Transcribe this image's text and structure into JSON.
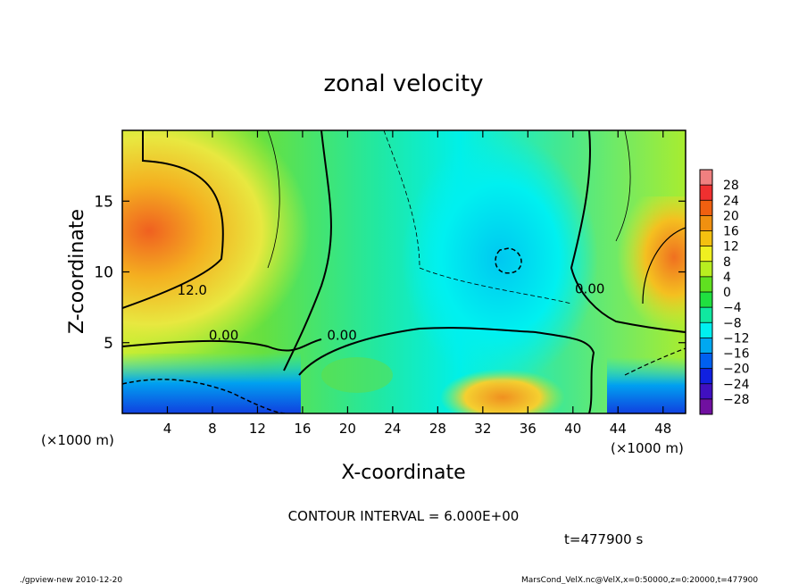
{
  "chart_data": {
    "type": "heatmap",
    "title": "zonal velocity",
    "xlabel": "X-coordinate",
    "ylabel": "Z-coordinate",
    "x_unit_label": "(×1000 m)",
    "z_unit_label": "(×1000 m)",
    "xlim": [
      0,
      50
    ],
    "ylim": [
      0,
      20
    ],
    "x_ticks": [
      4,
      8,
      12,
      16,
      20,
      24,
      28,
      32,
      36,
      40,
      44,
      48
    ],
    "y_ticks": [
      5,
      10,
      15
    ],
    "colorbar_levels": [
      28,
      24,
      20,
      16,
      12,
      8,
      4,
      0,
      -4,
      -8,
      -12,
      -16,
      -20,
      -24,
      -28
    ],
    "contour_labels": [
      {
        "text": "12.0",
        "x": 6.2,
        "y": 8.4
      },
      {
        "text": "0.00",
        "x": 9.0,
        "y": 5.2
      },
      {
        "text": "0.00",
        "x": 19.5,
        "y": 5.2
      },
      {
        "text": "0.00",
        "x": 41.5,
        "y": 8.5
      }
    ],
    "contour_interval_text": "CONTOUR INTERVAL = 6.000E+00",
    "time_text": "t=477900 s"
  },
  "footer": {
    "left": "./gpview-new  2010-12-20",
    "right": "MarsCond_VelX.nc@VelX,x=0:50000,z=0:20000,t=477900"
  },
  "colors": {
    "cyan": "#00f0f0",
    "green": "#33dd33",
    "yellow": "#f0e040",
    "orange": "#f08020",
    "blue": "#0030e0"
  }
}
